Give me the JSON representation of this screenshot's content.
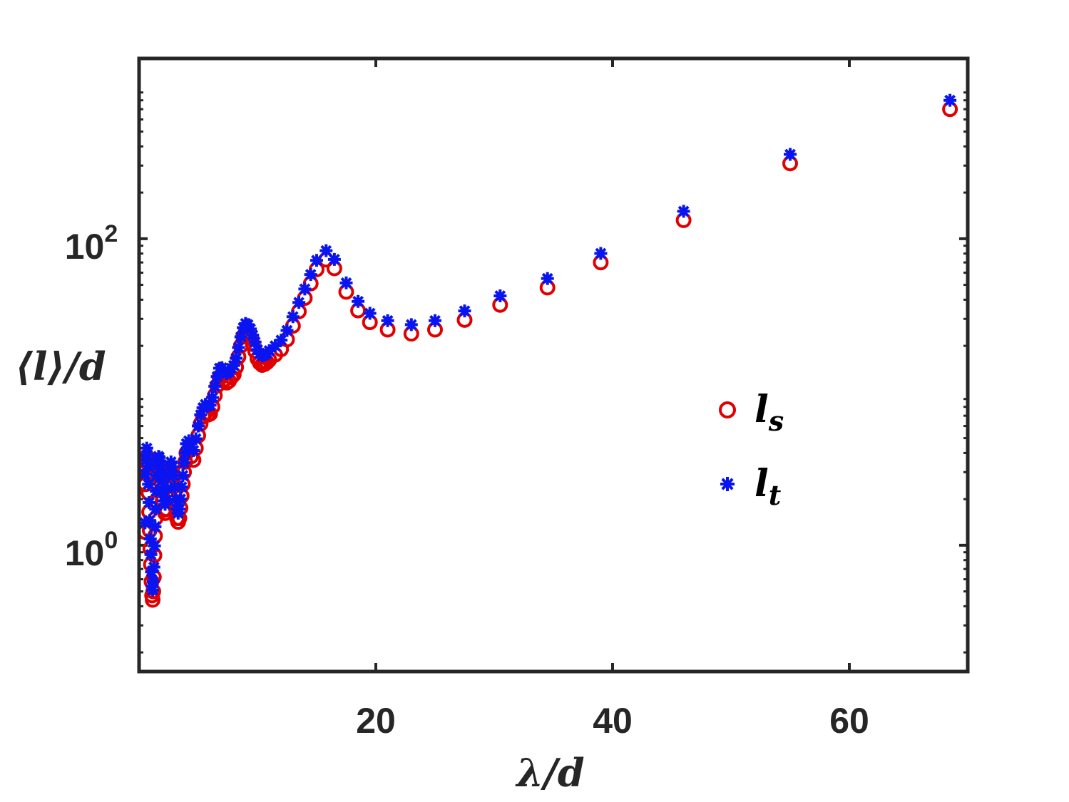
{
  "chart_data": {
    "type": "scatter",
    "xlabel": "λ/d",
    "ylabel": "⟨l⟩/d",
    "xlim": [
      0,
      70
    ],
    "ylim": [
      0.15,
      1500
    ],
    "yscale": "log",
    "x_ticks": [
      {
        "value": 20,
        "label": "20"
      },
      {
        "value": 40,
        "label": "40"
      },
      {
        "value": 60,
        "label": "60"
      }
    ],
    "y_ticks": [
      {
        "value": 1,
        "base": "10",
        "exp": "0"
      },
      {
        "value": 100,
        "base": "10",
        "exp": "2"
      }
    ],
    "grid": false,
    "box": true,
    "legend": {
      "position": "center-right"
    },
    "series": [
      {
        "name": "l",
        "name_sub": "s",
        "marker": "circle-open",
        "color": "#e00000",
        "points": [
          [
            0.5,
            1.22
          ],
          [
            0.55,
            2.5
          ],
          [
            0.6,
            3.2
          ],
          [
            0.65,
            3.8
          ],
          [
            0.7,
            3.45
          ],
          [
            0.75,
            2.9
          ],
          [
            0.8,
            2.2
          ],
          [
            0.85,
            1.65
          ],
          [
            0.9,
            1.25
          ],
          [
            0.95,
            0.95
          ],
          [
            1.0,
            0.75
          ],
          [
            1.05,
            0.58
          ],
          [
            1.1,
            0.47
          ],
          [
            1.15,
            0.44
          ],
          [
            1.2,
            0.5
          ],
          [
            1.25,
            0.62
          ],
          [
            1.3,
            0.86
          ],
          [
            1.35,
            1.15
          ],
          [
            1.4,
            1.5
          ],
          [
            1.45,
            1.95
          ],
          [
            1.5,
            2.5
          ],
          [
            1.55,
            2.95
          ],
          [
            1.6,
            3.2
          ],
          [
            1.65,
            3.3
          ],
          [
            1.7,
            3.25
          ],
          [
            1.75,
            3.1
          ],
          [
            1.8,
            2.9
          ],
          [
            1.85,
            2.6
          ],
          [
            1.9,
            2.3
          ],
          [
            2.0,
            1.95
          ],
          [
            2.1,
            1.7
          ],
          [
            2.2,
            1.62
          ],
          [
            2.3,
            1.72
          ],
          [
            2.4,
            2.05
          ],
          [
            2.5,
            2.5
          ],
          [
            2.6,
            2.9
          ],
          [
            2.7,
            3.05
          ],
          [
            2.8,
            2.85
          ],
          [
            2.9,
            2.5
          ],
          [
            3.0,
            2.1
          ],
          [
            3.1,
            1.75
          ],
          [
            3.2,
            1.5
          ],
          [
            3.3,
            1.42
          ],
          [
            3.4,
            1.5
          ],
          [
            3.5,
            1.75
          ],
          [
            3.6,
            2.1
          ],
          [
            3.7,
            2.5
          ],
          [
            3.8,
            3.0
          ],
          [
            3.9,
            3.5
          ],
          [
            4.0,
            4.0
          ],
          [
            4.2,
            4.2
          ],
          [
            4.4,
            3.8
          ],
          [
            4.6,
            3.6
          ],
          [
            4.8,
            4.3
          ],
          [
            5.0,
            5.2
          ],
          [
            5.2,
            6.2
          ],
          [
            5.4,
            6.9
          ],
          [
            5.6,
            7.3
          ],
          [
            5.8,
            7.1
          ],
          [
            6.0,
            7.2
          ],
          [
            6.2,
            8.0
          ],
          [
            6.4,
            9.5
          ],
          [
            6.6,
            11.0
          ],
          [
            6.8,
            12.5
          ],
          [
            7.0,
            12.6
          ],
          [
            7.2,
            12.0
          ],
          [
            7.4,
            11.5
          ],
          [
            7.6,
            11.8
          ],
          [
            7.8,
            12.5
          ],
          [
            8.0,
            13.0
          ],
          [
            8.2,
            14.5
          ],
          [
            8.4,
            17.0
          ],
          [
            8.6,
            20.0
          ],
          [
            8.8,
            23.0
          ],
          [
            9.0,
            24.5
          ],
          [
            9.2,
            24.0
          ],
          [
            9.4,
            22.5
          ],
          [
            9.6,
            20.5
          ],
          [
            9.8,
            18.5
          ],
          [
            10.0,
            16.5
          ],
          [
            10.2,
            15.5
          ],
          [
            10.4,
            15.0
          ],
          [
            10.6,
            15.2
          ],
          [
            10.8,
            15.6
          ],
          [
            11.0,
            16.2
          ],
          [
            11.5,
            17.5
          ],
          [
            12.0,
            19.0
          ],
          [
            12.5,
            22.0
          ],
          [
            13.0,
            27.0
          ],
          [
            13.5,
            33.5
          ],
          [
            14.0,
            41.0
          ],
          [
            14.5,
            51.0
          ],
          [
            15.0,
            63.0
          ],
          [
            15.8,
            73.0
          ],
          [
            16.5,
            64.0
          ],
          [
            17.5,
            45.0
          ],
          [
            18.5,
            34.0
          ],
          [
            19.5,
            28.5
          ],
          [
            21.0,
            25.5
          ],
          [
            23.0,
            24.0
          ],
          [
            25.0,
            25.5
          ],
          [
            27.5,
            29.5
          ],
          [
            30.5,
            37.0
          ],
          [
            34.5,
            48.0
          ],
          [
            39.0,
            70.0
          ],
          [
            46.0,
            132.0
          ],
          [
            55.0,
            310.0
          ],
          [
            68.5,
            700.0
          ]
        ]
      },
      {
        "name": "l",
        "name_sub": "t",
        "marker": "asterisk",
        "color": "#0a14f0",
        "points": [
          [
            0.5,
            1.4
          ],
          [
            0.55,
            2.9
          ],
          [
            0.6,
            3.6
          ],
          [
            0.65,
            4.3
          ],
          [
            0.7,
            3.9
          ],
          [
            0.75,
            3.3
          ],
          [
            0.8,
            2.5
          ],
          [
            0.85,
            1.9
          ],
          [
            0.9,
            1.45
          ],
          [
            0.95,
            1.1
          ],
          [
            1.0,
            0.87
          ],
          [
            1.05,
            0.67
          ],
          [
            1.1,
            0.54
          ],
          [
            1.15,
            0.51
          ],
          [
            1.2,
            0.58
          ],
          [
            1.25,
            0.72
          ],
          [
            1.3,
            0.99
          ],
          [
            1.35,
            1.32
          ],
          [
            1.4,
            1.72
          ],
          [
            1.45,
            2.25
          ],
          [
            1.5,
            2.85
          ],
          [
            1.55,
            3.35
          ],
          [
            1.6,
            3.65
          ],
          [
            1.65,
            3.8
          ],
          [
            1.7,
            3.75
          ],
          [
            1.75,
            3.55
          ],
          [
            1.8,
            3.3
          ],
          [
            1.85,
            2.95
          ],
          [
            1.9,
            2.6
          ],
          [
            2.0,
            2.25
          ],
          [
            2.1,
            1.95
          ],
          [
            2.2,
            1.85
          ],
          [
            2.3,
            1.97
          ],
          [
            2.4,
            2.35
          ],
          [
            2.5,
            2.85
          ],
          [
            2.6,
            3.3
          ],
          [
            2.7,
            3.5
          ],
          [
            2.8,
            3.25
          ],
          [
            2.9,
            2.85
          ],
          [
            3.0,
            2.4
          ],
          [
            3.1,
            2.0
          ],
          [
            3.2,
            1.72
          ],
          [
            3.3,
            1.62
          ],
          [
            3.4,
            1.72
          ],
          [
            3.5,
            2.0
          ],
          [
            3.6,
            2.4
          ],
          [
            3.7,
            2.85
          ],
          [
            3.8,
            3.45
          ],
          [
            3.9,
            4.0
          ],
          [
            4.0,
            4.6
          ],
          [
            4.2,
            4.8
          ],
          [
            4.4,
            4.35
          ],
          [
            4.6,
            4.15
          ],
          [
            4.8,
            4.95
          ],
          [
            5.0,
            6.0
          ],
          [
            5.2,
            7.1
          ],
          [
            5.4,
            7.9
          ],
          [
            5.6,
            8.3
          ],
          [
            5.8,
            8.1
          ],
          [
            6.0,
            8.2
          ],
          [
            6.2,
            9.2
          ],
          [
            6.4,
            10.9
          ],
          [
            6.6,
            12.6
          ],
          [
            6.8,
            14.3
          ],
          [
            7.0,
            14.4
          ],
          [
            7.2,
            13.8
          ],
          [
            7.4,
            13.2
          ],
          [
            7.6,
            13.5
          ],
          [
            7.8,
            14.3
          ],
          [
            8.0,
            14.9
          ],
          [
            8.2,
            16.6
          ],
          [
            8.4,
            19.5
          ],
          [
            8.6,
            22.9
          ],
          [
            8.8,
            26.3
          ],
          [
            9.0,
            28.0
          ],
          [
            9.2,
            27.5
          ],
          [
            9.4,
            25.8
          ],
          [
            9.6,
            23.5
          ],
          [
            9.8,
            21.2
          ],
          [
            10.0,
            18.9
          ],
          [
            10.2,
            17.8
          ],
          [
            10.4,
            17.2
          ],
          [
            10.6,
            17.4
          ],
          [
            10.8,
            17.9
          ],
          [
            11.0,
            18.6
          ],
          [
            11.5,
            20.0
          ],
          [
            12.0,
            21.8
          ],
          [
            12.5,
            25.2
          ],
          [
            13.0,
            31.0
          ],
          [
            13.5,
            38.4
          ],
          [
            14.0,
            47.0
          ],
          [
            14.5,
            58.4
          ],
          [
            15.0,
            72.2
          ],
          [
            15.8,
            83.6
          ],
          [
            16.5,
            73.3
          ],
          [
            17.5,
            51.5
          ],
          [
            18.5,
            39.0
          ],
          [
            19.5,
            32.6
          ],
          [
            21.0,
            29.2
          ],
          [
            23.0,
            27.5
          ],
          [
            25.0,
            29.2
          ],
          [
            27.5,
            33.8
          ],
          [
            30.5,
            42.4
          ],
          [
            34.5,
            55.0
          ],
          [
            39.0,
            80.2
          ],
          [
            46.0,
            151.0
          ],
          [
            55.0,
            355.0
          ],
          [
            68.5,
            800.0
          ]
        ]
      }
    ]
  }
}
